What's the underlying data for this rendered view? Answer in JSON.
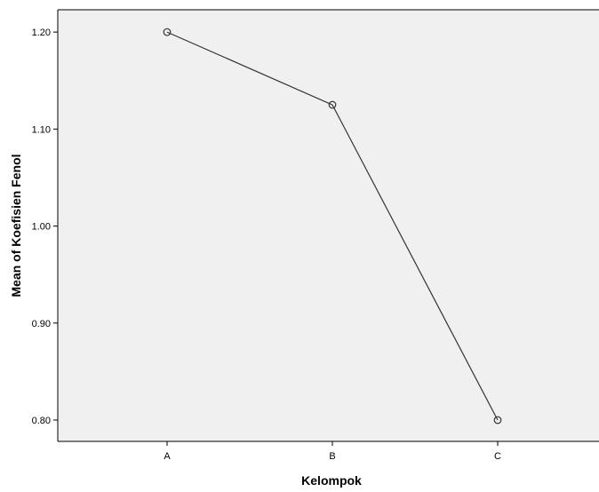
{
  "chart_data": {
    "type": "line",
    "title": "",
    "xlabel": "Kelompok",
    "ylabel": "Mean of Koefisien Fenol",
    "categories": [
      "A",
      "B",
      "C"
    ],
    "series": [
      {
        "values": [
          1.2,
          1.125,
          0.8
        ]
      }
    ],
    "ylim": [
      0.778,
      1.223
    ],
    "yticks": [
      0.8,
      0.9,
      1.0,
      1.1,
      1.2
    ],
    "ytick_labels": [
      "0.80",
      "0.90",
      "1.00",
      "1.10",
      "1.20"
    ],
    "grid": false,
    "marker": "open-circle",
    "colors": {
      "plot_background": "#f0f0f0",
      "line": "#333333",
      "axis": "#000000"
    }
  }
}
